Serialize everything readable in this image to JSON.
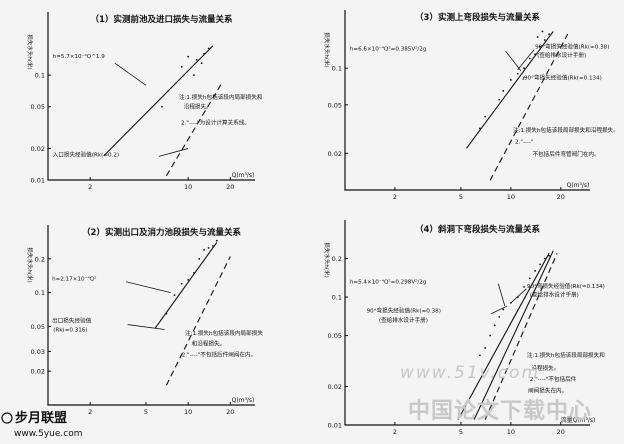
{
  "chart_data": [
    {
      "type": "line",
      "title": "（1）实测前池及进口损失与流量关系",
      "ylabel": "损失水头h(米)",
      "xlabel": "Q(m³/s)",
      "xscale": "log",
      "yscale": "log",
      "xlim": [
        1,
        30
      ],
      "ylim": [
        0.01,
        0.4
      ],
      "xticks": [
        {
          "v": 2,
          "t": "2"
        },
        {
          "v": 10,
          "t": "10"
        },
        {
          "v": 20,
          "t": "20"
        }
      ],
      "yticks": [
        {
          "v": 0.01,
          "t": "0.01"
        },
        {
          "v": 0.02,
          "t": "0.02"
        },
        {
          "v": 0.05,
          "t": "0.05"
        },
        {
          "v": 0.1,
          "t": "0.1"
        }
      ],
      "series": [
        {
          "style": "solid",
          "x": [
            2.5,
            15
          ],
          "y": [
            0.017,
            0.19
          ]
        },
        {
          "style": "dashed",
          "x": [
            7,
            17.5
          ],
          "y": [
            0.011,
            0.085
          ]
        }
      ],
      "points": [
        [
          10,
          0.15
        ],
        [
          11.5,
          0.14
        ],
        [
          13,
          0.16
        ],
        [
          14,
          0.18
        ],
        [
          9,
          0.12
        ],
        [
          12.5,
          0.13
        ],
        [
          6.5,
          0.05
        ],
        [
          11,
          0.1
        ]
      ],
      "annotations": [
        {
          "t": "h=5.7×10⁻⁴Q^1.9",
          "x": 1.08,
          "y": 0.145
        },
        {
          "t": "注:1.损失h包括该段内局部损失和",
          "x": 8.6,
          "y": 0.059
        },
        {
          "t": "沿程损失。",
          "x": 9.3,
          "y": 0.048
        },
        {
          "t": "2.\"----\"为设计计算关系线。",
          "x": 8.9,
          "y": 0.034
        },
        {
          "t": "入口损失经验值(Rk(=0.2)",
          "x": 1.08,
          "y": 0.0168
        }
      ],
      "leaders": [
        {
          "x1": 3.0,
          "y1": 0.13,
          "x2": 5.0,
          "y2": 0.08
        },
        {
          "x1": 6.2,
          "y1": 0.0168,
          "x2": 10,
          "y2": 0.02
        }
      ]
    },
    {
      "type": "line",
      "title": "（3）实测上弯段损失与流量关系",
      "ylabel": "损失水头h(米)",
      "xlabel": "Q(m³/s)",
      "xscale": "log",
      "yscale": "log",
      "xlim": [
        1,
        30
      ],
      "ylim": [
        0.01,
        0.3
      ],
      "xticks": [
        {
          "v": 2,
          "t": "2"
        },
        {
          "v": 5,
          "t": "5"
        },
        {
          "v": 10,
          "t": "10"
        },
        {
          "v": 20,
          "t": "20"
        }
      ],
      "yticks": [
        {
          "v": 0.02,
          "t": "0.02"
        },
        {
          "v": 0.05,
          "t": "0.05"
        },
        {
          "v": 0.1,
          "t": "0.1"
        }
      ],
      "series": [
        {
          "style": "solid",
          "x": [
            5.4,
            18
          ],
          "y": [
            0.022,
            0.2
          ]
        },
        {
          "style": "dashed",
          "x": [
            7.5,
            22
          ],
          "y": [
            0.012,
            0.19
          ]
        }
      ],
      "points": [
        [
          17,
          0.19
        ],
        [
          16,
          0.17
        ],
        [
          15,
          0.15
        ],
        [
          14,
          0.13
        ],
        [
          13,
          0.12
        ],
        [
          11,
          0.09
        ],
        [
          10,
          0.08
        ],
        [
          12,
          0.1
        ],
        [
          9,
          0.065
        ],
        [
          8.5,
          0.055
        ],
        [
          7,
          0.04
        ],
        [
          6.5,
          0.032
        ],
        [
          15.5,
          0.2
        ],
        [
          14.5,
          0.18
        ]
      ],
      "annotations": [
        {
          "t": "h=6.6×10⁻⁴Q²=0.385V²/2g",
          "x": 1.07,
          "y": 0.14
        },
        {
          "t": "90°弯损失经验值(Rk(=0.38)",
          "x": 14,
          "y": 0.145
        },
        {
          "t": "(查给排水设计手册)",
          "x": 14.4,
          "y": 0.123
        },
        {
          "t": "90°弯损失经验值(Rk(=0.134)",
          "x": 12,
          "y": 0.081
        },
        {
          "t": "注:1.损失h包括该段局部损失和沿程损失。",
          "x": 10.3,
          "y": 0.03
        },
        {
          "t": "2.\"----\"",
          "x": 10.6,
          "y": 0.024
        },
        {
          "t": "不包括后件弯管阀门在内。",
          "x": 13.5,
          "y": 0.019
        }
      ],
      "leaders": [
        {
          "x1": 9.3,
          "y1": 0.138,
          "x2": 11.5,
          "y2": 0.095
        },
        {
          "x1": 13.8,
          "y1": 0.142,
          "x2": 11,
          "y2": 0.097
        },
        {
          "x1": 11.8,
          "y1": 0.08,
          "x2": 12,
          "y2": 0.085
        }
      ]
    },
    {
      "type": "line",
      "title": "（2）实测出口及消力池段损失与流量关系",
      "ylabel": "损失水头h(米)",
      "xlabel": "Q(m³/s)",
      "xscale": "log",
      "yscale": "log",
      "xlim": [
        1,
        30
      ],
      "ylim": [
        0.01,
        0.4
      ],
      "xticks": [
        {
          "v": 2,
          "t": "2"
        },
        {
          "v": 5,
          "t": "5"
        },
        {
          "v": 10,
          "t": "10"
        },
        {
          "v": 20,
          "t": "20"
        }
      ],
      "yticks": [
        {
          "v": 0.02,
          "t": "0.02"
        },
        {
          "v": 0.03,
          "t": "0.03"
        },
        {
          "v": 0.05,
          "t": "0.05"
        },
        {
          "v": 0.1,
          "t": "0.1"
        },
        {
          "v": 0.2,
          "t": "0.2"
        }
      ],
      "series": [
        {
          "style": "solid",
          "x": [
            5.8,
            16
          ],
          "y": [
            0.048,
            0.28
          ]
        },
        {
          "style": "dashed",
          "x": [
            7,
            20
          ],
          "y": [
            0.015,
            0.21
          ]
        }
      ],
      "points": [
        [
          15,
          0.26
        ],
        [
          14,
          0.25
        ],
        [
          13,
          0.24
        ],
        [
          12,
          0.2
        ],
        [
          11,
          0.15
        ],
        [
          10,
          0.13
        ],
        [
          9,
          0.12
        ],
        [
          8,
          0.095
        ],
        [
          7,
          0.065
        ],
        [
          16,
          0.29
        ]
      ],
      "annotations": [
        {
          "t": "h=2.17×10⁻⁴Q²",
          "x": 1.07,
          "y": 0.128
        },
        {
          "t": "出口损失经验值",
          "x": 1.07,
          "y": 0.054
        },
        {
          "t": "(Rk(=0.316)",
          "x": 1.09,
          "y": 0.045
        },
        {
          "t": "注:1.损失h包括该段内局部损失",
          "x": 9.5,
          "y": 0.042
        },
        {
          "t": "和沿程损失。",
          "x": 10.6,
          "y": 0.034
        },
        {
          "t": "2.\"----\"不包括后件闸阀在内。",
          "x": 9,
          "y": 0.027
        }
      ],
      "leaders": [
        {
          "x1": 3.6,
          "y1": 0.125,
          "x2": 7.5,
          "y2": 0.1
        },
        {
          "x1": 3.7,
          "y1": 0.052,
          "x2": 6.8,
          "y2": 0.047
        }
      ]
    },
    {
      "type": "line",
      "title": "（4）斜洞下弯段损失与流量关系",
      "ylabel": "损失水头h(米)",
      "xlabel": "流量Q(m³/s)",
      "xscale": "log",
      "yscale": "log",
      "xlim": [
        1,
        30
      ],
      "ylim": [
        0.01,
        0.4
      ],
      "xticks": [
        {
          "v": 2,
          "t": "2"
        },
        {
          "v": 5,
          "t": "5"
        },
        {
          "v": 10,
          "t": "10"
        },
        {
          "v": 20,
          "t": "20"
        }
      ],
      "yticks": [
        {
          "v": 0.01,
          "t": "0.01"
        },
        {
          "v": 0.02,
          "t": "0.02"
        },
        {
          "v": 0.05,
          "t": "0.05"
        },
        {
          "v": 0.1,
          "t": "0.1"
        },
        {
          "v": 0.2,
          "t": "0.2"
        }
      ],
      "series": [
        {
          "style": "solid",
          "x": [
            4.8,
            17
          ],
          "y": [
            0.011,
            0.22
          ]
        },
        {
          "style": "solid",
          "x": [
            6,
            18
          ],
          "y": [
            0.011,
            0.23
          ]
        },
        {
          "style": "dashed",
          "x": [
            7,
            19
          ],
          "y": [
            0.011,
            0.22
          ]
        }
      ],
      "points": [
        [
          16,
          0.2
        ],
        [
          15,
          0.18
        ],
        [
          14,
          0.16
        ],
        [
          13,
          0.14
        ],
        [
          12,
          0.12
        ],
        [
          11,
          0.1
        ],
        [
          10,
          0.09
        ],
        [
          9,
          0.08
        ],
        [
          8.5,
          0.07
        ],
        [
          8,
          0.06
        ],
        [
          7.5,
          0.05
        ],
        [
          7,
          0.04
        ],
        [
          6.5,
          0.035
        ],
        [
          17,
          0.21
        ]
      ],
      "annotations": [
        {
          "t": "h=5.4×10⁻⁴Q²=0.298V²/2g",
          "x": 1.07,
          "y": 0.128
        },
        {
          "t": "90°弯损失经验值(Rk(=0.134)",
          "x": 12.5,
          "y": 0.118
        },
        {
          "t": "(查给排水设计手册)",
          "x": 13,
          "y": 0.101
        },
        {
          "t": "90°弯损失经验值(Rk(=0.38)",
          "x": 1.35,
          "y": 0.076
        },
        {
          "t": "(查给排水设计手册)",
          "x": 1.6,
          "y": 0.064
        },
        {
          "t": "注:1.损失h包括该段局部损失和",
          "x": 12.5,
          "y": 0.034
        },
        {
          "t": "沿程损失。",
          "x": 13.3,
          "y": 0.027
        },
        {
          "t": "2.\"----\"不包括后件",
          "x": 13,
          "y": 0.022
        },
        {
          "t": "闸阀损失在内。",
          "x": 12.7,
          "y": 0.018
        }
      ],
      "leaders": [
        {
          "x1": 8.4,
          "y1": 0.127,
          "x2": 9.2,
          "y2": 0.085
        },
        {
          "x1": 12.4,
          "y1": 0.116,
          "x2": 10,
          "y2": 0.09
        },
        {
          "x1": 7.6,
          "y1": 0.074,
          "x2": 9.5,
          "y2": 0.085
        }
      ]
    }
  ],
  "watermark": {
    "top": "www.51v.com",
    "bottom": "中国论文下载中心",
    "logo": "步月联盟",
    "logo_url": "www.5yue.com"
  }
}
